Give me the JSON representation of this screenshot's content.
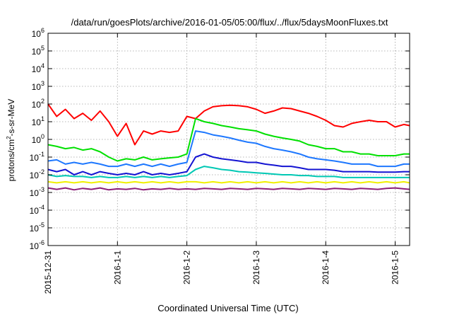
{
  "chart_data": {
    "type": "line",
    "title": "/data/run/goesPlots/archive/2016-01-05/05:00/flux/../flux/5daysMoonFluxes.txt",
    "xlabel": "Coordinated Universal Time (UTC)",
    "ylabel": {
      "base": "protons/cm",
      "sup": "2",
      "rest": "-s-sr-MeV"
    },
    "y_scale": "log",
    "ylim": [
      1e-06,
      1000000.0
    ],
    "y_ticks": [
      {
        "base": "10",
        "exp": "-6",
        "value": 1e-06
      },
      {
        "base": "10",
        "exp": "-5",
        "value": 1e-05
      },
      {
        "base": "10",
        "exp": "-4",
        "value": 0.0001
      },
      {
        "base": "10",
        "exp": "-3",
        "value": 0.001
      },
      {
        "base": "10",
        "exp": "-2",
        "value": 0.01
      },
      {
        "base": "10",
        "exp": "-1",
        "value": 0.1
      },
      {
        "base": "10",
        "exp": "0",
        "value": 1
      },
      {
        "base": "10",
        "exp": "1",
        "value": 10
      },
      {
        "base": "10",
        "exp": "2",
        "value": 100
      },
      {
        "base": "10",
        "exp": "3",
        "value": 1000
      },
      {
        "base": "10",
        "exp": "4",
        "value": 10000
      },
      {
        "base": "10",
        "exp": "5",
        "value": 100000
      },
      {
        "base": "10",
        "exp": "6",
        "value": 1000000
      }
    ],
    "x_type": "time",
    "xlim": [
      "2015-12-31 00:00",
      "2016-01-05 05:00"
    ],
    "x_ticks": [
      {
        "label": "2015-12-31",
        "time": "2015-12-31 00:00"
      },
      {
        "label": "2016-1-1",
        "time": "2016-01-01 00:00"
      },
      {
        "label": "2016-1-2",
        "time": "2016-01-02 00:00"
      },
      {
        "label": "2016-1-3",
        "time": "2016-01-03 00:00"
      },
      {
        "label": "2016-1-4",
        "time": "2016-01-04 00:00"
      },
      {
        "label": "2016-1-5",
        "time": "2016-01-05 00:00"
      }
    ],
    "grid": true,
    "legend": "none",
    "x": [
      "2015-12-31 00:00",
      "2015-12-31 03:00",
      "2015-12-31 06:00",
      "2015-12-31 09:00",
      "2015-12-31 12:00",
      "2015-12-31 15:00",
      "2015-12-31 18:00",
      "2015-12-31 21:00",
      "2016-01-01 00:00",
      "2016-01-01 03:00",
      "2016-01-01 06:00",
      "2016-01-01 09:00",
      "2016-01-01 12:00",
      "2016-01-01 15:00",
      "2016-01-01 18:00",
      "2016-01-01 21:00",
      "2016-01-02 00:00",
      "2016-01-02 03:00",
      "2016-01-02 06:00",
      "2016-01-02 09:00",
      "2016-01-02 12:00",
      "2016-01-02 15:00",
      "2016-01-02 18:00",
      "2016-01-02 21:00",
      "2016-01-03 00:00",
      "2016-01-03 03:00",
      "2016-01-03 06:00",
      "2016-01-03 09:00",
      "2016-01-03 12:00",
      "2016-01-03 15:00",
      "2016-01-03 18:00",
      "2016-01-03 21:00",
      "2016-01-04 00:00",
      "2016-01-04 03:00",
      "2016-01-04 06:00",
      "2016-01-04 09:00",
      "2016-01-04 12:00",
      "2016-01-04 15:00",
      "2016-01-04 18:00",
      "2016-01-04 21:00",
      "2016-01-05 00:00",
      "2016-01-05 03:00",
      "2016-01-05 05:00"
    ],
    "series": [
      {
        "color": "#ff0000",
        "values": [
          100,
          20,
          50,
          15,
          30,
          12,
          40,
          10,
          1.5,
          8,
          0.5,
          3,
          2,
          3,
          2.5,
          3,
          20,
          15,
          40,
          70,
          80,
          85,
          80,
          70,
          50,
          30,
          40,
          60,
          55,
          40,
          30,
          20,
          12,
          6,
          5,
          8,
          10,
          12,
          10,
          10,
          5,
          7,
          6
        ]
      },
      {
        "color": "#00e000",
        "values": [
          0.5,
          0.4,
          0.3,
          0.35,
          0.25,
          0.3,
          0.2,
          0.1,
          0.06,
          0.08,
          0.07,
          0.1,
          0.07,
          0.08,
          0.09,
          0.1,
          0.15,
          15,
          10,
          8,
          6,
          5,
          4,
          3.5,
          3,
          2,
          1.5,
          1.2,
          1,
          0.8,
          0.5,
          0.4,
          0.3,
          0.3,
          0.2,
          0.2,
          0.15,
          0.15,
          0.12,
          0.12,
          0.12,
          0.15,
          0.15
        ]
      },
      {
        "color": "#1e78ff",
        "values": [
          0.06,
          0.07,
          0.04,
          0.05,
          0.04,
          0.05,
          0.04,
          0.03,
          0.03,
          0.04,
          0.03,
          0.04,
          0.03,
          0.04,
          0.03,
          0.04,
          0.05,
          3,
          2.5,
          1.8,
          1.5,
          1.2,
          0.9,
          0.7,
          0.6,
          0.4,
          0.3,
          0.25,
          0.2,
          0.15,
          0.1,
          0.08,
          0.07,
          0.06,
          0.05,
          0.04,
          0.04,
          0.04,
          0.03,
          0.03,
          0.03,
          0.04,
          0.04
        ]
      },
      {
        "color": "#1414d2",
        "values": [
          0.02,
          0.015,
          0.02,
          0.01,
          0.015,
          0.01,
          0.015,
          0.012,
          0.01,
          0.012,
          0.01,
          0.015,
          0.01,
          0.012,
          0.01,
          0.012,
          0.015,
          0.1,
          0.15,
          0.1,
          0.08,
          0.07,
          0.06,
          0.05,
          0.05,
          0.04,
          0.035,
          0.03,
          0.03,
          0.025,
          0.02,
          0.02,
          0.02,
          0.018,
          0.015,
          0.015,
          0.015,
          0.015,
          0.014,
          0.014,
          0.014,
          0.015,
          0.015
        ]
      },
      {
        "color": "#00c8b4",
        "values": [
          0.01,
          0.008,
          0.009,
          0.008,
          0.008,
          0.007,
          0.008,
          0.007,
          0.007,
          0.008,
          0.007,
          0.008,
          0.007,
          0.008,
          0.007,
          0.008,
          0.009,
          0.02,
          0.03,
          0.025,
          0.02,
          0.018,
          0.015,
          0.014,
          0.013,
          0.012,
          0.011,
          0.01,
          0.01,
          0.009,
          0.009,
          0.008,
          0.008,
          0.008,
          0.007,
          0.007,
          0.007,
          0.007,
          0.007,
          0.007,
          0.007,
          0.007,
          0.007
        ]
      },
      {
        "color": "#f0f000",
        "values": [
          0.004,
          0.0035,
          0.004,
          0.0035,
          0.004,
          0.0035,
          0.004,
          0.0035,
          0.004,
          0.0035,
          0.004,
          0.0035,
          0.004,
          0.0035,
          0.004,
          0.0035,
          0.004,
          0.004,
          0.0035,
          0.004,
          0.0035,
          0.004,
          0.0035,
          0.004,
          0.0035,
          0.004,
          0.0035,
          0.004,
          0.0035,
          0.004,
          0.0035,
          0.004,
          0.0035,
          0.004,
          0.0035,
          0.004,
          0.0035,
          0.004,
          0.0035,
          0.004,
          0.0035,
          0.004,
          0.0035
        ]
      },
      {
        "color": "#8c1e78",
        "values": [
          0.0018,
          0.0015,
          0.0018,
          0.0014,
          0.0017,
          0.0015,
          0.0018,
          0.0014,
          0.0016,
          0.0015,
          0.0017,
          0.0014,
          0.0016,
          0.0015,
          0.0017,
          0.0015,
          0.0016,
          0.0015,
          0.0017,
          0.0016,
          0.0015,
          0.0017,
          0.0016,
          0.0015,
          0.0017,
          0.0016,
          0.0015,
          0.0017,
          0.0016,
          0.0015,
          0.0017,
          0.0016,
          0.0015,
          0.0017,
          0.0016,
          0.0015,
          0.0017,
          0.0016,
          0.0015,
          0.0017,
          0.0018,
          0.0016,
          0.0015
        ]
      }
    ]
  }
}
